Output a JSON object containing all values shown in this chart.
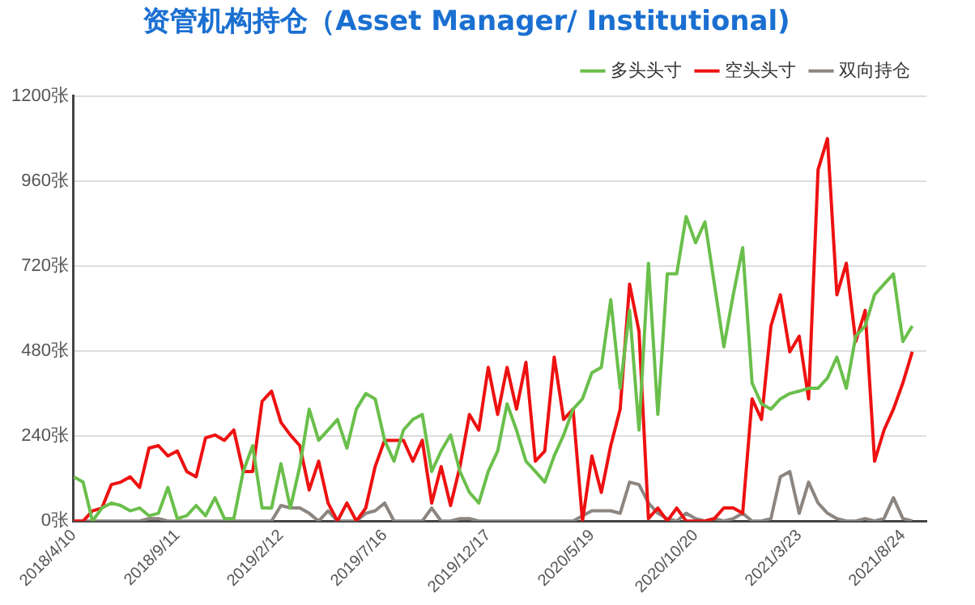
{
  "chart_data": {
    "type": "line",
    "title": "资管机构持仓（Asset Manager/ Institutional)",
    "x": [
      "2018-04-10",
      "2018-04-24",
      "2018-05-08",
      "2018-05-22",
      "2018-06-05",
      "2018-06-19",
      "2018-07-03",
      "2018-07-17",
      "2018-07-31",
      "2018-08-14",
      "2018-08-28",
      "2018-09-11",
      "2018-09-25",
      "2018-10-09",
      "2018-10-23",
      "2018-11-06",
      "2018-11-20",
      "2018-12-04",
      "2018-12-18",
      "2019-01-01",
      "2019-01-15",
      "2019-01-29",
      "2019-02-12",
      "2019-02-26",
      "2019-03-12",
      "2019-03-26",
      "2019-04-09",
      "2019-04-23",
      "2019-05-07",
      "2019-05-21",
      "2019-06-04",
      "2019-06-18",
      "2019-07-02",
      "2019-07-16",
      "2019-07-30",
      "2019-08-13",
      "2019-08-27",
      "2019-09-10",
      "2019-09-24",
      "2019-10-08",
      "2019-10-22",
      "2019-11-05",
      "2019-11-19",
      "2019-12-03",
      "2019-12-17",
      "2019-12-31",
      "2020-01-14",
      "2020-01-28",
      "2020-02-11",
      "2020-02-25",
      "2020-03-10",
      "2020-03-24",
      "2020-04-07",
      "2020-04-21",
      "2020-05-05",
      "2020-05-19",
      "2020-06-02",
      "2020-06-16",
      "2020-06-30",
      "2020-07-14",
      "2020-07-28",
      "2020-08-11",
      "2020-08-25",
      "2020-09-08",
      "2020-09-22",
      "2020-10-06",
      "2020-10-20",
      "2020-11-03",
      "2020-11-17",
      "2020-12-01",
      "2020-12-15",
      "2020-12-29",
      "2021-01-12",
      "2021-01-26",
      "2021-02-09",
      "2021-02-23",
      "2021-03-09",
      "2021-03-23",
      "2021-04-06",
      "2021-04-20",
      "2021-05-04",
      "2021-05-18",
      "2021-06-01",
      "2021-06-15",
      "2021-06-29",
      "2021-07-13",
      "2021-07-27",
      "2021-08-10",
      "2021-08-24",
      "2021-09-07"
    ],
    "series": [
      {
        "name": "多头头寸",
        "color": "#6abf4b",
        "values": [
          125,
          110,
          0,
          37,
          51,
          44,
          29,
          37,
          15,
          22,
          95,
          7,
          15,
          44,
          15,
          66,
          7,
          7,
          140,
          213,
          37,
          37,
          162,
          37,
          154,
          316,
          228,
          257,
          287,
          206,
          316,
          360,
          345,
          228,
          169,
          257,
          287,
          301,
          140,
          198,
          243,
          140,
          81,
          51,
          140,
          198,
          331,
          257,
          169,
          140,
          110,
          184,
          243,
          316,
          345,
          419,
          434,
          625,
          375,
          595,
          257,
          728,
          301,
          698,
          698,
          860,
          786,
          845,
          669,
          492,
          639,
          772,
          390,
          331,
          316,
          345,
          360,
          367,
          375,
          375,
          404,
          463,
          375,
          522,
          551,
          639,
          669,
          698,
          507,
          551
        ]
      },
      {
        "name": "空头头寸",
        "color": "#ee1111",
        "values": [
          0,
          0,
          29,
          37,
          103,
          110,
          125,
          95,
          206,
          213,
          184,
          198,
          140,
          125,
          235,
          243,
          228,
          257,
          140,
          140,
          338,
          367,
          279,
          243,
          213,
          88,
          169,
          51,
          0,
          51,
          0,
          37,
          154,
          228,
          228,
          228,
          169,
          228,
          51,
          154,
          44,
          154,
          301,
          257,
          434,
          301,
          434,
          316,
          448,
          169,
          198,
          463,
          287,
          316,
          0,
          184,
          81,
          213,
          316,
          669,
          536,
          7,
          37,
          0,
          37,
          0,
          0,
          0,
          7,
          37,
          37,
          22,
          345,
          287,
          551,
          639,
          478,
          522,
          345,
          992,
          1080,
          639,
          728,
          507,
          595,
          169,
          257,
          316,
          390,
          478
        ]
      },
      {
        "name": "双向持仓",
        "color": "#8c8580",
        "values": [
          0,
          0,
          0,
          0,
          0,
          0,
          0,
          0,
          7,
          7,
          0,
          0,
          0,
          0,
          0,
          0,
          0,
          0,
          0,
          0,
          0,
          0,
          44,
          37,
          37,
          22,
          0,
          29,
          0,
          0,
          0,
          22,
          29,
          51,
          0,
          0,
          0,
          0,
          37,
          0,
          0,
          7,
          7,
          0,
          0,
          0,
          0,
          0,
          0,
          0,
          0,
          0,
          0,
          0,
          15,
          29,
          29,
          29,
          22,
          110,
          103,
          51,
          22,
          7,
          0,
          22,
          7,
          0,
          7,
          0,
          7,
          22,
          0,
          0,
          7,
          125,
          140,
          22,
          110,
          51,
          22,
          7,
          0,
          0,
          7,
          0,
          7,
          66,
          7,
          0
        ]
      }
    ],
    "xlim": [
      "2018-04-10",
      "2021-09-28"
    ],
    "xticks": [
      {
        "value": "2018-04-10",
        "label": "2018/4/10"
      },
      {
        "value": "2018-09-11",
        "label": "2018/9/11"
      },
      {
        "value": "2019-02-12",
        "label": "2019/2/12"
      },
      {
        "value": "2019-07-16",
        "label": "2019/7/16"
      },
      {
        "value": "2019-12-17",
        "label": "2019/12/17"
      },
      {
        "value": "2020-05-19",
        "label": "2020/5/19"
      },
      {
        "value": "2020-10-20",
        "label": "2020/10/20"
      },
      {
        "value": "2021-03-23",
        "label": "2021/3/23"
      },
      {
        "value": "2021-08-24",
        "label": "2021/8/24"
      }
    ],
    "ylim": [
      0,
      1200
    ],
    "yticks": [
      {
        "value": 0,
        "label": "0张"
      },
      {
        "value": 240,
        "label": "240张"
      },
      {
        "value": 480,
        "label": "480张"
      },
      {
        "value": 720,
        "label": "720张"
      },
      {
        "value": 960,
        "label": "960张"
      },
      {
        "value": 1200,
        "label": "1200张"
      }
    ],
    "grid": "y",
    "legend": "top right",
    "marker": "none",
    "line_style": "solid"
  }
}
